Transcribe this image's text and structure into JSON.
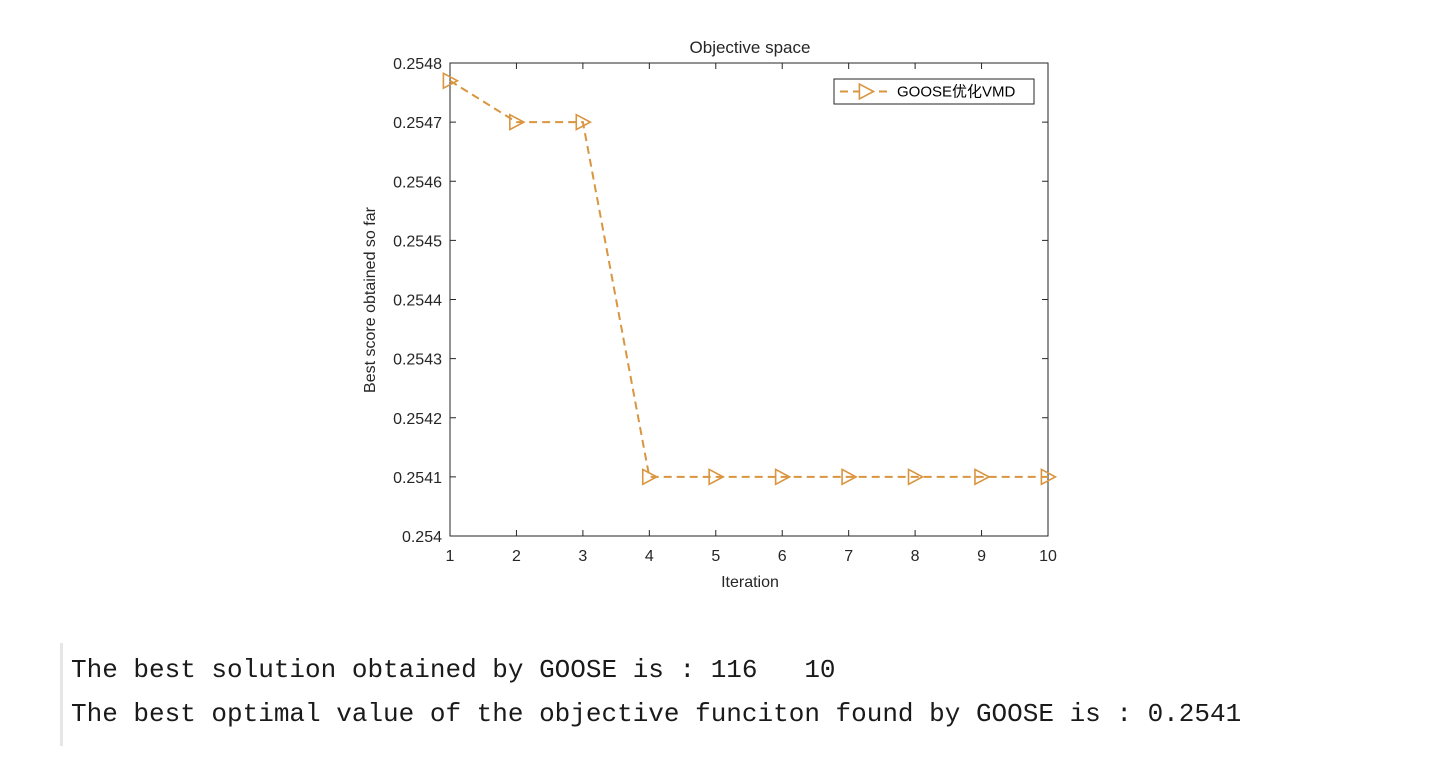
{
  "chart_data": {
    "type": "line",
    "title": "Objective space",
    "xlabel": "Iteration",
    "ylabel": "Best score obtained so far",
    "x": [
      1,
      2,
      3,
      4,
      5,
      6,
      7,
      8,
      9,
      10
    ],
    "xticks": [
      "1",
      "2",
      "3",
      "4",
      "5",
      "6",
      "7",
      "8",
      "9",
      "10"
    ],
    "yticks": [
      "0.254",
      "0.2541",
      "0.2542",
      "0.2543",
      "0.2544",
      "0.2545",
      "0.2546",
      "0.2547",
      "0.2548"
    ],
    "xlim": [
      1,
      10
    ],
    "ylim": [
      0.254,
      0.2548
    ],
    "grid": false,
    "legend_location": "top-right",
    "series": [
      {
        "name": "GOOSE优化VMD",
        "values": [
          0.25477,
          0.2547,
          0.2547,
          0.2541,
          0.2541,
          0.2541,
          0.2541,
          0.2541,
          0.2541,
          0.2541
        ],
        "color": "#D9953F",
        "line_style": "dashed",
        "marker": "triangle-right"
      }
    ]
  },
  "console": {
    "line1": "The best solution obtained by GOOSE is : 116   10",
    "line2": "The best optimal value of the objective funciton found by GOOSE is : 0.2541"
  }
}
